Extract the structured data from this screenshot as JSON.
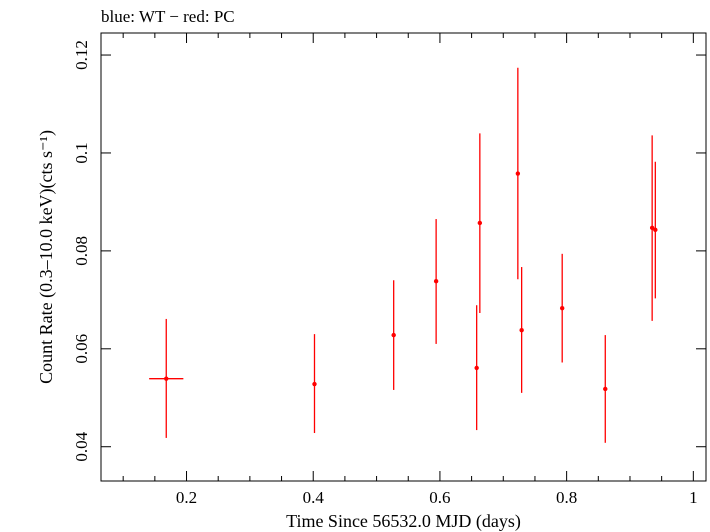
{
  "chart_data": {
    "type": "scatter",
    "title": "blue: WT − red: PC",
    "xlabel": "Time Since 56532.0 MJD (days)",
    "ylabel": "Count Rate (0.3–10.0 keV)(cts s⁻¹)",
    "xlim": [
      0.065,
      1.02
    ],
    "ylim": [
      0.033,
      0.1245
    ],
    "x_ticks": [
      0.2,
      0.4,
      0.6,
      0.8,
      1
    ],
    "x_tick_labels": [
      "0.2",
      "0.4",
      "0.6",
      "0.8",
      "1"
    ],
    "y_ticks": [
      0.04,
      0.06,
      0.08,
      0.1,
      0.12
    ],
    "y_tick_labels": [
      "0.04",
      "0.06",
      "0.08",
      "0.1",
      "0.12"
    ],
    "grid": false,
    "series": [
      {
        "name": "PC",
        "color": "#ff0000",
        "points": [
          {
            "x": 0.168,
            "y": 0.0539,
            "xerr": 0.027,
            "ylo": 0.0418,
            "yhi": 0.0661
          },
          {
            "x": 0.402,
            "y": 0.0528,
            "xerr": 0.002,
            "ylo": 0.0428,
            "yhi": 0.063
          },
          {
            "x": 0.527,
            "y": 0.0628,
            "xerr": 0.002,
            "ylo": 0.0516,
            "yhi": 0.074
          },
          {
            "x": 0.594,
            "y": 0.0738,
            "xerr": 0.002,
            "ylo": 0.061,
            "yhi": 0.0865
          },
          {
            "x": 0.658,
            "y": 0.0561,
            "xerr": 0.002,
            "ylo": 0.0434,
            "yhi": 0.0689
          },
          {
            "x": 0.663,
            "y": 0.0857,
            "xerr": 0.002,
            "ylo": 0.0673,
            "yhi": 0.104
          },
          {
            "x": 0.723,
            "y": 0.0958,
            "xerr": 0.002,
            "ylo": 0.0742,
            "yhi": 0.1174
          },
          {
            "x": 0.729,
            "y": 0.0638,
            "xerr": 0.002,
            "ylo": 0.051,
            "yhi": 0.0767
          },
          {
            "x": 0.793,
            "y": 0.0683,
            "xerr": 0.002,
            "ylo": 0.0572,
            "yhi": 0.0794
          },
          {
            "x": 0.861,
            "y": 0.0518,
            "xerr": 0.002,
            "ylo": 0.0408,
            "yhi": 0.0628
          },
          {
            "x": 0.935,
            "y": 0.0847,
            "xerr": 0.002,
            "ylo": 0.0657,
            "yhi": 0.1036
          },
          {
            "x": 0.94,
            "y": 0.0843,
            "xerr": 0.002,
            "ylo": 0.0703,
            "yhi": 0.0982
          }
        ]
      }
    ]
  }
}
